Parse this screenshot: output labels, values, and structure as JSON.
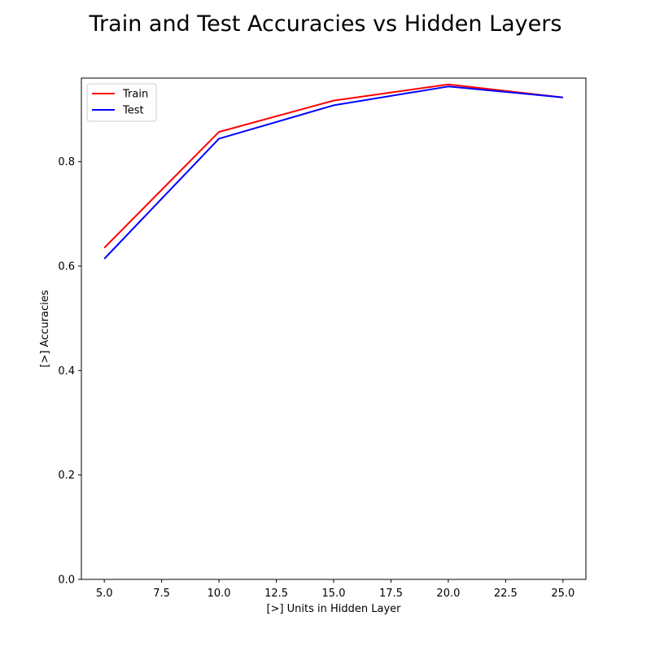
{
  "chart_data": {
    "type": "line",
    "title": "Train and Test Accuracies vs Hidden Layers",
    "xlabel": "[>] Units in Hidden Layer",
    "ylabel": "[>] Accuracies",
    "x": [
      5,
      10,
      15,
      20,
      25
    ],
    "series": [
      {
        "name": "Train",
        "color": "#ff0000",
        "values": [
          0.635,
          0.857,
          0.917,
          0.948,
          0.923
        ]
      },
      {
        "name": "Test",
        "color": "#0000ff",
        "values": [
          0.614,
          0.844,
          0.908,
          0.944,
          0.923
        ]
      }
    ],
    "xlim": [
      4.0,
      26.0
    ],
    "ylim": [
      0.0,
      0.96
    ],
    "xticks": [
      5.0,
      7.5,
      10.0,
      12.5,
      15.0,
      17.5,
      20.0,
      22.5,
      25.0
    ],
    "xtick_labels": [
      "5.0",
      "7.5",
      "10.0",
      "12.5",
      "15.0",
      "17.5",
      "20.0",
      "22.5",
      "25.0"
    ],
    "yticks": [
      0.0,
      0.2,
      0.4,
      0.6,
      0.8
    ],
    "ytick_labels": [
      "0.0",
      "0.2",
      "0.4",
      "0.6",
      "0.8"
    ],
    "grid": false,
    "legend_position": "upper left"
  }
}
